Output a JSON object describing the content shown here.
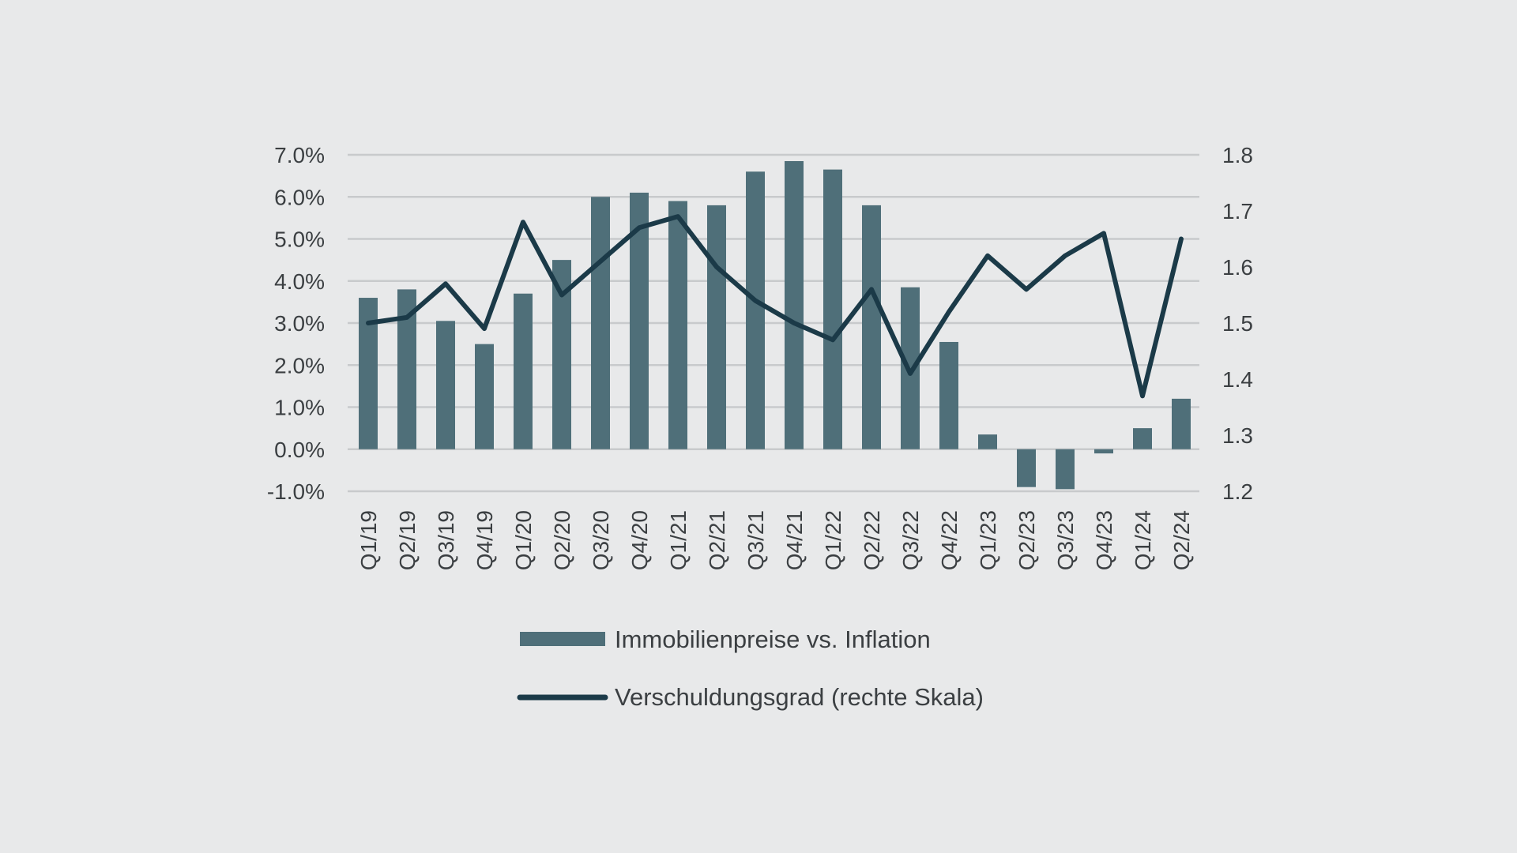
{
  "chart_data": {
    "type": "bar",
    "categories": [
      "Q1/19",
      "Q2/19",
      "Q3/19",
      "Q4/19",
      "Q1/20",
      "Q2/20",
      "Q3/20",
      "Q4/20",
      "Q1/21",
      "Q2/21",
      "Q3/21",
      "Q4/21",
      "Q1/22",
      "Q2/22",
      "Q3/22",
      "Q4/22",
      "Q1/23",
      "Q2/23",
      "Q3/23",
      "Q4/23",
      "Q1/24",
      "Q2/24"
    ],
    "series": [
      {
        "name": "Immobilienpreise vs. Inflation",
        "type": "bar",
        "axis": "left",
        "color": "#4f6f79",
        "values": [
          3.6,
          3.8,
          3.05,
          2.5,
          3.7,
          4.5,
          6.0,
          6.1,
          5.9,
          5.8,
          6.6,
          6.85,
          6.65,
          5.8,
          3.85,
          2.55,
          0.35,
          -0.9,
          -0.95,
          -0.1,
          0.5,
          1.2
        ]
      },
      {
        "name": "Verschuldungsgrad (rechte Skala)",
        "type": "line",
        "axis": "right",
        "color": "#1b3a48",
        "values": [
          1.5,
          1.51,
          1.57,
          1.49,
          1.68,
          1.55,
          1.61,
          1.67,
          1.69,
          1.6,
          1.54,
          1.5,
          1.47,
          1.56,
          1.41,
          1.52,
          1.62,
          1.56,
          1.62,
          1.66,
          1.37,
          1.65
        ]
      }
    ],
    "y_left": {
      "lim": [
        -1.0,
        7.0
      ],
      "ticks": [
        7.0,
        6.0,
        5.0,
        4.0,
        3.0,
        2.0,
        1.0,
        0.0,
        -1.0
      ],
      "tick_labels": [
        "7.0%",
        "6.0%",
        "5.0%",
        "4.0%",
        "3.0%",
        "2.0%",
        "1.0%",
        "0.0%",
        "-1.0%"
      ]
    },
    "y_right": {
      "lim": [
        1.2,
        1.8
      ],
      "ticks": [
        1.8,
        1.7,
        1.6,
        1.5,
        1.4,
        1.3,
        1.2
      ],
      "tick_labels": [
        "1.8",
        "1.7",
        "1.6",
        "1.5",
        "1.4",
        "1.3",
        "1.2"
      ]
    },
    "grid": true,
    "legend_position": "bottom",
    "title": "",
    "xlabel": "",
    "ylabel": ""
  },
  "legend": {
    "bar_label": "Immobilienpreise vs. Inflation",
    "line_label": "Verschuldungsgrad (rechte Skala)"
  },
  "colors": {
    "background": "#e8e9ea",
    "grid": "#c8cacc",
    "bar": "#4f6f79",
    "line": "#1b3a48",
    "text": "#3b3f42"
  }
}
